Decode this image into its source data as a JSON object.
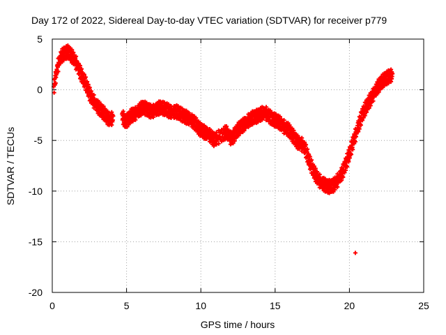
{
  "chart_data": {
    "type": "scatter",
    "title": "Day 172 of 2022, Sidereal Day-to-day VTEC variation (SDTVAR) for receiver p779",
    "xlabel": "GPS time / hours",
    "ylabel": "SDTVAR / TECUs",
    "xlim": [
      0,
      25
    ],
    "ylim": [
      -20,
      5
    ],
    "xticks": [
      0,
      5,
      10,
      15,
      20,
      25
    ],
    "xtick_labels": [
      "0",
      "5",
      "10",
      "15",
      "20",
      "25"
    ],
    "yticks": [
      5,
      0,
      -5,
      -10,
      -15,
      -20
    ],
    "ytick_labels": [
      "5",
      "0",
      "-5",
      "-10",
      "-15",
      "-20"
    ],
    "grid": true,
    "marker_color": "#ff0000",
    "series": [
      {
        "name": "SDTVAR",
        "x": [
          0.1,
          0.3,
          0.5,
          0.7,
          0.9,
          1.1,
          1.3,
          1.5,
          1.7,
          1.9,
          2.1,
          2.3,
          2.5,
          2.7,
          2.9,
          3.1,
          3.3,
          3.5,
          3.7,
          3.9,
          4.1,
          4.7,
          4.9,
          5.1,
          5.3,
          5.5,
          5.7,
          5.9,
          6.1,
          6.3,
          6.5,
          6.7,
          6.9,
          7.1,
          7.3,
          7.5,
          7.7,
          7.9,
          8.1,
          8.3,
          8.5,
          8.7,
          8.9,
          9.1,
          9.3,
          9.5,
          9.7,
          9.9,
          10.1,
          10.3,
          10.5,
          10.7,
          10.9,
          11.1,
          11.5,
          11.7,
          11.9,
          12.1,
          12.3,
          12.5,
          12.7,
          12.9,
          13.1,
          13.3,
          13.5,
          13.7,
          13.9,
          14.1,
          14.3,
          14.5,
          14.7,
          14.9,
          15.1,
          15.3,
          15.5,
          15.7,
          15.9,
          16.1,
          16.3,
          16.5,
          16.7,
          16.9,
          17.1,
          17.3,
          17.5,
          17.7,
          17.9,
          18.1,
          18.3,
          18.5,
          18.7,
          18.9,
          19.1,
          19.3,
          19.5,
          19.7,
          19.9,
          20.1,
          20.3,
          20.5,
          20.7,
          20.9,
          21.1,
          21.3,
          21.5,
          21.7,
          21.9,
          22.1,
          22.3,
          22.5,
          22.7,
          22.9,
          20.4
        ],
        "values": [
          0.3,
          2.0,
          3.2,
          3.6,
          3.8,
          3.9,
          3.5,
          3.1,
          2.5,
          1.8,
          1.2,
          0.6,
          -0.2,
          -0.8,
          -1.2,
          -1.6,
          -1.9,
          -2.2,
          -2.6,
          -2.8,
          -2.6,
          -2.4,
          -3.0,
          -2.8,
          -2.4,
          -2.3,
          -2.1,
          -1.8,
          -1.6,
          -1.7,
          -1.9,
          -2.0,
          -1.9,
          -1.7,
          -1.6,
          -1.7,
          -1.8,
          -2.0,
          -2.1,
          -2.0,
          -2.1,
          -2.3,
          -2.5,
          -2.6,
          -2.8,
          -3.0,
          -3.3,
          -3.7,
          -3.9,
          -4.1,
          -4.2,
          -4.5,
          -4.8,
          -4.6,
          -4.3,
          -4.0,
          -4.5,
          -4.7,
          -4.2,
          -3.8,
          -3.5,
          -3.3,
          -3.0,
          -2.8,
          -2.6,
          -2.5,
          -2.4,
          -2.2,
          -2.1,
          -2.3,
          -2.6,
          -2.8,
          -2.9,
          -3.1,
          -3.4,
          -3.6,
          -3.8,
          -4.2,
          -4.6,
          -5.0,
          -5.2,
          -5.3,
          -6.0,
          -6.9,
          -7.6,
          -8.2,
          -8.7,
          -9.0,
          -9.2,
          -9.4,
          -9.4,
          -9.3,
          -9.0,
          -8.6,
          -8.1,
          -7.4,
          -6.6,
          -5.7,
          -4.8,
          -3.9,
          -3.0,
          -2.2,
          -1.6,
          -1.1,
          -0.6,
          -0.1,
          0.4,
          0.8,
          1.1,
          1.3,
          1.5,
          1.6,
          -16.1
        ]
      }
    ]
  }
}
